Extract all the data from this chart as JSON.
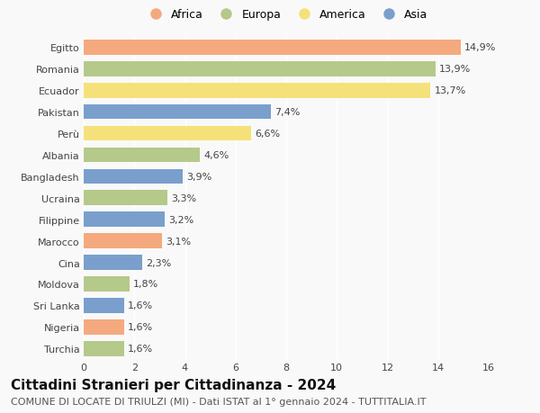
{
  "categories": [
    "Turchia",
    "Nigeria",
    "Sri Lanka",
    "Moldova",
    "Cina",
    "Marocco",
    "Filippine",
    "Ucraina",
    "Bangladesh",
    "Albania",
    "Perù",
    "Pakistan",
    "Ecuador",
    "Romania",
    "Egitto"
  ],
  "values": [
    1.6,
    1.6,
    1.6,
    1.8,
    2.3,
    3.1,
    3.2,
    3.3,
    3.9,
    4.6,
    6.6,
    7.4,
    13.7,
    13.9,
    14.9
  ],
  "labels": [
    "1,6%",
    "1,6%",
    "1,6%",
    "1,8%",
    "2,3%",
    "3,1%",
    "3,2%",
    "3,3%",
    "3,9%",
    "4,6%",
    "6,6%",
    "7,4%",
    "13,7%",
    "13,9%",
    "14,9%"
  ],
  "continents": [
    "Europa",
    "Africa",
    "Asia",
    "Europa",
    "Asia",
    "Africa",
    "Asia",
    "Europa",
    "Asia",
    "Europa",
    "America",
    "Asia",
    "America",
    "Europa",
    "Africa"
  ],
  "colors": {
    "Africa": "#F4A97F",
    "Europa": "#B5C98A",
    "America": "#F5E17A",
    "Asia": "#7A9FCC"
  },
  "legend_order": [
    "Africa",
    "Europa",
    "America",
    "Asia"
  ],
  "title": "Cittadini Stranieri per Cittadinanza - 2024",
  "subtitle": "COMUNE DI LOCATE DI TRIULZI (MI) - Dati ISTAT al 1° gennaio 2024 - TUTTITALIA.IT",
  "xlim": [
    0,
    16
  ],
  "xticks": [
    0,
    2,
    4,
    6,
    8,
    10,
    12,
    14,
    16
  ],
  "background_color": "#f9f9f9",
  "bar_height": 0.7,
  "title_fontsize": 11,
  "subtitle_fontsize": 8,
  "label_fontsize": 8,
  "tick_fontsize": 8,
  "legend_fontsize": 9,
  "grid_color": "#ffffff",
  "label_color": "#444444",
  "tick_color": "#444444"
}
